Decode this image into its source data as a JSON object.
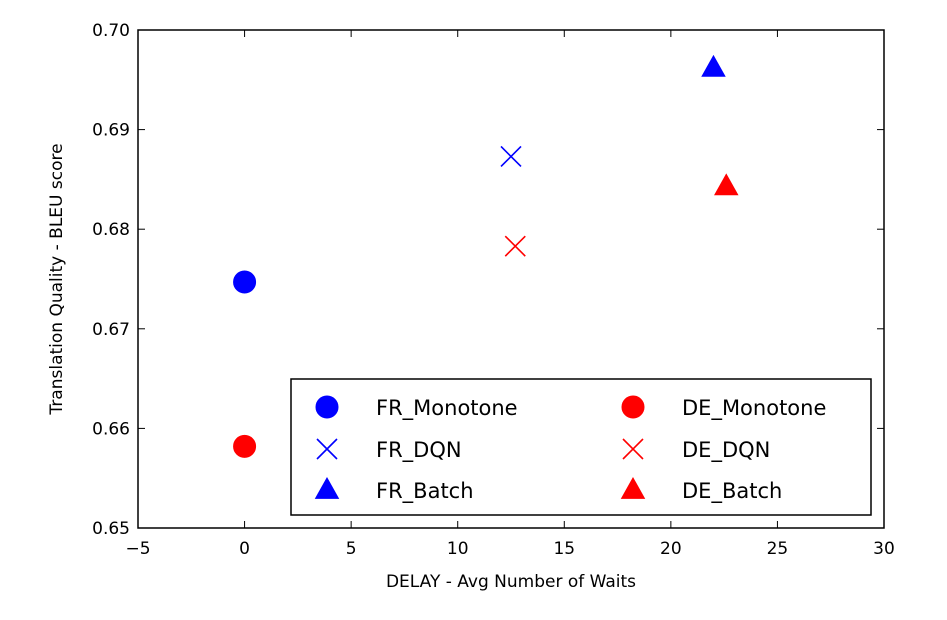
{
  "chart_data": {
    "type": "scatter",
    "title": "",
    "xlabel": "DELAY - Avg Number of Waits",
    "ylabel": "Translation Quality - BLEU score",
    "xlim": [
      -5,
      30
    ],
    "ylim": [
      0.65,
      0.7
    ],
    "xticks": [
      -5,
      0,
      5,
      10,
      15,
      20,
      25,
      30
    ],
    "xtick_labels": [
      "−5",
      "0",
      "5",
      "10",
      "15",
      "20",
      "25",
      "30"
    ],
    "yticks": [
      0.65,
      0.66,
      0.67,
      0.68,
      0.69,
      0.7
    ],
    "ytick_labels": [
      "0.65",
      "0.66",
      "0.67",
      "0.68",
      "0.69",
      "0.70"
    ],
    "grid": false,
    "legend_position": "lower-right",
    "legend_columns": 2,
    "series": [
      {
        "name": "FR_Monotone",
        "marker": "circle",
        "color": "#0000ff",
        "points": [
          {
            "x": 0.0,
            "y": 0.6747
          }
        ]
      },
      {
        "name": "FR_DQN",
        "marker": "x",
        "color": "#0000ff",
        "points": [
          {
            "x": 12.5,
            "y": 0.6873
          }
        ]
      },
      {
        "name": "FR_Batch",
        "marker": "triangle",
        "color": "#0000ff",
        "points": [
          {
            "x": 22.0,
            "y": 0.6962
          }
        ]
      },
      {
        "name": "DE_Monotone",
        "marker": "circle",
        "color": "#ff0000",
        "points": [
          {
            "x": 0.0,
            "y": 0.6582
          }
        ]
      },
      {
        "name": "DE_DQN",
        "marker": "x",
        "color": "#ff0000",
        "points": [
          {
            "x": 12.7,
            "y": 0.6783
          }
        ]
      },
      {
        "name": "DE_Batch",
        "marker": "triangle",
        "color": "#ff0000",
        "points": [
          {
            "x": 22.6,
            "y": 0.6843
          }
        ]
      }
    ]
  }
}
